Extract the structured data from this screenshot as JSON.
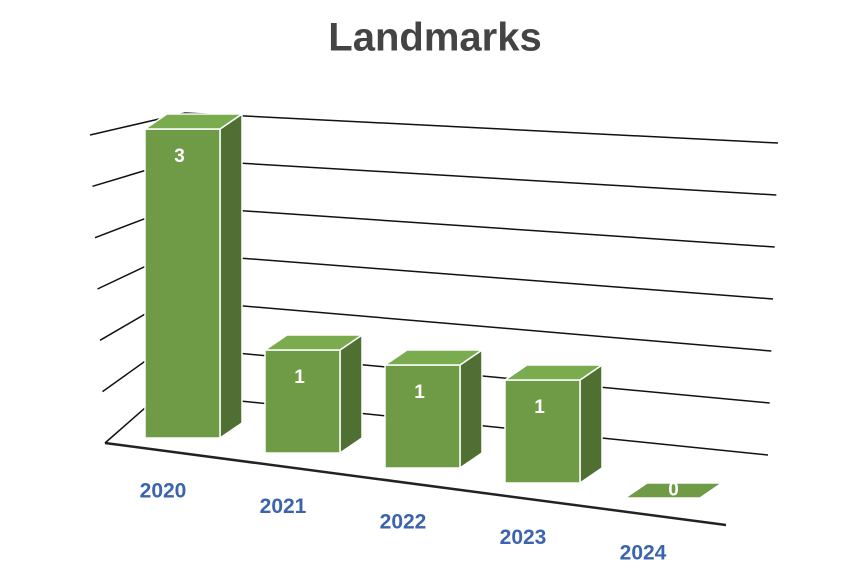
{
  "chart_data": {
    "type": "bar3d",
    "title": "Landmarks",
    "categories": [
      "2020",
      "2021",
      "2022",
      "2023",
      "2024"
    ],
    "values": [
      3,
      1,
      1,
      1,
      0
    ],
    "color": "#6f9b47",
    "ylim": [
      0,
      3
    ],
    "yticks": [
      0,
      0.5,
      1,
      1.5,
      2,
      2.5,
      3
    ],
    "grid": true
  }
}
